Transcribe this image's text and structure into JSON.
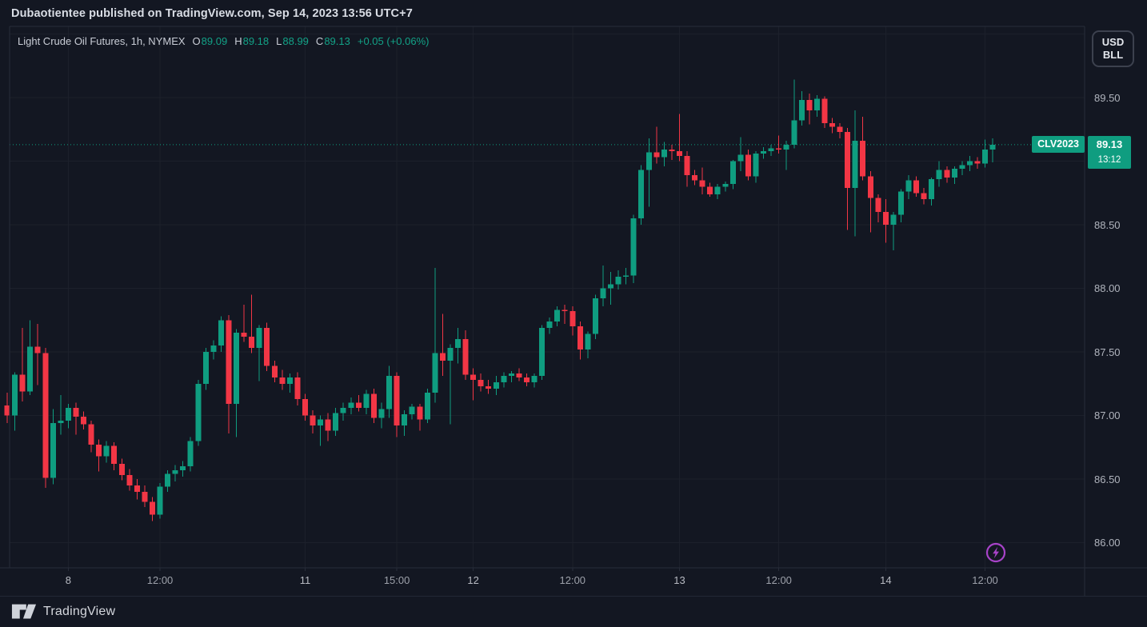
{
  "publish_bar": {
    "text": "Dubaotientee published on TradingView.com, Sep 14, 2023 13:56 UTC+7"
  },
  "legend": {
    "title": "Light Crude Oil Futures, 1h, NYMEX",
    "ohlc": [
      {
        "label": "O",
        "value": "89.09"
      },
      {
        "label": "H",
        "value": "89.18"
      },
      {
        "label": "L",
        "value": "88.99"
      },
      {
        "label": "C",
        "value": "89.13"
      }
    ],
    "change": "+0.05 (+0.06%)"
  },
  "unit_badge": {
    "line1": "USD",
    "line2": "BLL"
  },
  "price_label": {
    "symbol": "CLV2023",
    "price": "89.13",
    "countdown": "13:12"
  },
  "footer": {
    "brand": "TradingView"
  },
  "icons": {
    "flash": "lightning-bolt-in-circle"
  },
  "colors": {
    "background": "#131722",
    "up": "#0f9d80",
    "down": "#f23645",
    "grid": "#1c202b",
    "border": "#272c39",
    "axis_text": "#b0b4bd",
    "text_primary": "#d9dde5",
    "flash_icon": "#a843c9",
    "badge_text": "#ffffff"
  },
  "chart_data": {
    "type": "candlestick",
    "symbol": "CLV2023",
    "title": "Light Crude Oil Futures",
    "exchange": "NYMEX",
    "interval": "1h",
    "last_price": 89.13,
    "countdown": "13:12",
    "ohlc_last": {
      "open": 89.09,
      "high": 89.18,
      "low": 88.99,
      "close": 89.13,
      "change": "+0.05 (+0.06%)"
    },
    "grid": true,
    "y_axis": {
      "side": "right",
      "visible_range": [
        85.8,
        90.06
      ],
      "ticks": [
        {
          "text": "89.50",
          "price": 89.5
        },
        {
          "text": "88.50",
          "price": 88.5
        },
        {
          "text": "88.00",
          "price": 88.0
        },
        {
          "text": "87.50",
          "price": 87.5
        },
        {
          "text": "87.00",
          "price": 87.0
        },
        {
          "text": "86.50",
          "price": 86.5
        },
        {
          "text": "86.00",
          "price": 86.0
        }
      ],
      "unlabeled_gridlines": [
        90.0,
        89.0
      ]
    },
    "x_axis": {
      "ticks": [
        {
          "label": "8",
          "index": 8,
          "major": true
        },
        {
          "label": "12:00",
          "index": 20,
          "major": false
        },
        {
          "label": "11",
          "index": 39,
          "major": true
        },
        {
          "label": "15:00",
          "index": 51,
          "major": false
        },
        {
          "label": "12",
          "index": 61,
          "major": true
        },
        {
          "label": "12:00",
          "index": 74,
          "major": false
        },
        {
          "label": "13",
          "index": 88,
          "major": true
        },
        {
          "label": "12:00",
          "index": 101,
          "major": false
        },
        {
          "label": "14",
          "index": 115,
          "major": true
        },
        {
          "label": "12:00",
          "index": 128,
          "major": false
        }
      ]
    },
    "candles": [
      [
        87.08,
        87.18,
        86.94,
        87.0
      ],
      [
        87.0,
        87.34,
        86.88,
        87.32
      ],
      [
        87.32,
        87.69,
        87.11,
        87.19
      ],
      [
        87.19,
        87.75,
        87.16,
        87.54
      ],
      [
        87.54,
        87.72,
        87.24,
        87.49
      ],
      [
        87.49,
        87.53,
        86.43,
        86.51
      ],
      [
        86.51,
        87.05,
        86.46,
        86.94
      ],
      [
        86.94,
        87.16,
        86.85,
        86.96
      ],
      [
        86.96,
        87.09,
        86.9,
        87.06
      ],
      [
        87.06,
        87.1,
        86.85,
        86.99
      ],
      [
        86.99,
        87.03,
        86.89,
        86.93
      ],
      [
        86.93,
        86.96,
        86.71,
        86.77
      ],
      [
        86.77,
        86.81,
        86.56,
        86.68
      ],
      [
        86.68,
        86.8,
        86.63,
        86.76
      ],
      [
        86.76,
        86.79,
        86.57,
        86.62
      ],
      [
        86.62,
        86.66,
        86.49,
        86.53
      ],
      [
        86.53,
        86.58,
        86.41,
        86.45
      ],
      [
        86.45,
        86.5,
        86.34,
        86.4
      ],
      [
        86.4,
        86.45,
        86.28,
        86.32
      ],
      [
        86.32,
        86.36,
        86.17,
        86.22
      ],
      [
        86.22,
        86.47,
        86.19,
        86.44
      ],
      [
        86.44,
        86.57,
        86.4,
        86.54
      ],
      [
        86.54,
        86.61,
        86.48,
        86.57
      ],
      [
        86.57,
        86.64,
        86.52,
        86.6
      ],
      [
        86.6,
        86.83,
        86.56,
        86.8
      ],
      [
        86.8,
        87.28,
        86.76,
        87.25
      ],
      [
        87.25,
        87.53,
        87.2,
        87.5
      ],
      [
        87.5,
        87.59,
        87.44,
        87.55
      ],
      [
        87.55,
        87.78,
        87.5,
        87.75
      ],
      [
        87.75,
        87.79,
        86.86,
        87.09
      ],
      [
        87.09,
        87.68,
        86.83,
        87.65
      ],
      [
        87.65,
        87.87,
        87.58,
        87.62
      ],
      [
        87.62,
        87.95,
        87.49,
        87.53
      ],
      [
        87.53,
        87.71,
        87.27,
        87.69
      ],
      [
        87.69,
        87.73,
        87.35,
        87.39
      ],
      [
        87.39,
        87.43,
        87.26,
        87.3
      ],
      [
        87.3,
        87.36,
        87.2,
        87.25
      ],
      [
        87.25,
        87.33,
        87.18,
        87.3
      ],
      [
        87.3,
        87.34,
        87.08,
        87.13
      ],
      [
        87.13,
        87.17,
        86.96,
        87.0
      ],
      [
        87.0,
        87.04,
        86.86,
        86.92
      ],
      [
        86.92,
        87.0,
        86.76,
        86.97
      ],
      [
        86.97,
        87.02,
        86.8,
        86.88
      ],
      [
        86.88,
        87.06,
        86.84,
        87.02
      ],
      [
        87.02,
        87.1,
        86.96,
        87.06
      ],
      [
        87.06,
        87.14,
        87.01,
        87.1
      ],
      [
        87.1,
        87.16,
        87.03,
        87.06
      ],
      [
        87.06,
        87.2,
        87.01,
        87.17
      ],
      [
        87.17,
        87.21,
        86.94,
        86.98
      ],
      [
        86.98,
        87.1,
        86.9,
        87.05
      ],
      [
        87.05,
        87.39,
        86.98,
        87.31
      ],
      [
        87.31,
        87.34,
        86.83,
        86.92
      ],
      [
        86.92,
        87.04,
        86.84,
        87.01
      ],
      [
        87.01,
        87.09,
        86.97,
        87.07
      ],
      [
        87.07,
        87.09,
        86.88,
        86.97
      ],
      [
        86.97,
        87.21,
        86.94,
        87.18
      ],
      [
        87.18,
        88.16,
        87.1,
        87.49
      ],
      [
        87.49,
        87.8,
        87.31,
        87.43
      ],
      [
        87.43,
        87.56,
        86.93,
        87.53
      ],
      [
        87.53,
        87.69,
        87.41,
        87.6
      ],
      [
        87.6,
        87.67,
        87.28,
        87.32
      ],
      [
        87.32,
        87.37,
        87.12,
        87.28
      ],
      [
        87.28,
        87.33,
        87.19,
        87.23
      ],
      [
        87.23,
        87.28,
        87.17,
        87.21
      ],
      [
        87.21,
        87.31,
        87.16,
        87.26
      ],
      [
        87.26,
        87.34,
        87.22,
        87.31
      ],
      [
        87.31,
        87.35,
        87.26,
        87.33
      ],
      [
        87.33,
        87.37,
        87.27,
        87.3
      ],
      [
        87.3,
        87.33,
        87.23,
        87.26
      ],
      [
        87.26,
        87.33,
        87.22,
        87.31
      ],
      [
        87.31,
        87.71,
        87.28,
        87.69
      ],
      [
        87.69,
        87.77,
        87.64,
        87.74
      ],
      [
        87.74,
        87.86,
        87.7,
        87.83
      ],
      [
        87.83,
        87.87,
        87.72,
        87.82
      ],
      [
        87.82,
        87.86,
        87.63,
        87.7
      ],
      [
        87.7,
        87.74,
        87.44,
        87.52
      ],
      [
        87.52,
        87.66,
        87.45,
        87.64
      ],
      [
        87.64,
        87.95,
        87.6,
        87.92
      ],
      [
        87.92,
        88.18,
        87.86,
        88.0
      ],
      [
        88.0,
        88.13,
        87.87,
        88.03
      ],
      [
        88.03,
        88.14,
        87.99,
        88.09
      ],
      [
        88.09,
        88.16,
        88.03,
        88.1
      ],
      [
        88.1,
        88.58,
        88.04,
        88.55
      ],
      [
        88.55,
        88.97,
        88.5,
        88.93
      ],
      [
        88.93,
        89.18,
        88.64,
        89.07
      ],
      [
        89.07,
        89.27,
        88.98,
        89.03
      ],
      [
        89.03,
        89.15,
        88.96,
        89.09
      ],
      [
        89.09,
        89.13,
        89.01,
        89.08
      ],
      [
        89.08,
        89.37,
        89.0,
        89.04
      ],
      [
        89.04,
        89.08,
        88.8,
        88.89
      ],
      [
        88.89,
        88.93,
        88.81,
        88.85
      ],
      [
        88.85,
        88.95,
        88.74,
        88.8
      ],
      [
        88.8,
        88.83,
        88.72,
        88.74
      ],
      [
        88.74,
        88.82,
        88.7,
        88.8
      ],
      [
        88.8,
        88.84,
        88.76,
        88.82
      ],
      [
        88.82,
        89.01,
        88.78,
        89.0
      ],
      [
        89.0,
        89.19,
        88.92,
        89.05
      ],
      [
        89.05,
        89.09,
        88.85,
        88.88
      ],
      [
        88.88,
        89.08,
        88.83,
        89.06
      ],
      [
        89.06,
        89.11,
        89.02,
        89.08
      ],
      [
        89.08,
        89.13,
        89.04,
        89.1
      ],
      [
        89.1,
        89.2,
        89.06,
        89.09
      ],
      [
        89.09,
        89.16,
        88.93,
        89.13
      ],
      [
        89.13,
        89.64,
        89.1,
        89.32
      ],
      [
        89.32,
        89.55,
        89.28,
        89.48
      ],
      [
        89.48,
        89.53,
        89.29,
        89.4
      ],
      [
        89.4,
        89.52,
        89.35,
        89.49
      ],
      [
        89.49,
        89.51,
        89.26,
        89.3
      ],
      [
        89.3,
        89.34,
        89.22,
        89.27
      ],
      [
        89.27,
        89.3,
        89.18,
        89.23
      ],
      [
        89.23,
        89.26,
        88.46,
        88.79
      ],
      [
        88.79,
        89.4,
        88.41,
        89.16
      ],
      [
        89.16,
        89.35,
        88.85,
        88.88
      ],
      [
        88.88,
        88.92,
        88.44,
        88.71
      ],
      [
        88.71,
        88.74,
        88.52,
        88.6
      ],
      [
        88.6,
        88.7,
        88.36,
        88.5
      ],
      [
        88.5,
        88.6,
        88.3,
        88.58
      ],
      [
        88.58,
        88.78,
        88.52,
        88.76
      ],
      [
        88.76,
        88.89,
        88.7,
        88.85
      ],
      [
        88.85,
        88.88,
        88.72,
        88.75
      ],
      [
        88.75,
        88.79,
        88.66,
        88.7
      ],
      [
        88.7,
        88.87,
        88.65,
        88.86
      ],
      [
        88.86,
        89.0,
        88.8,
        88.93
      ],
      [
        88.93,
        88.96,
        88.83,
        88.87
      ],
      [
        88.87,
        88.96,
        88.82,
        88.94
      ],
      [
        88.94,
        89.0,
        88.89,
        88.97
      ],
      [
        88.97,
        89.04,
        88.92,
        89.0
      ],
      [
        89.0,
        89.03,
        88.94,
        88.98
      ],
      [
        88.98,
        89.17,
        88.95,
        89.09
      ],
      [
        89.09,
        89.18,
        88.99,
        89.13
      ]
    ]
  }
}
